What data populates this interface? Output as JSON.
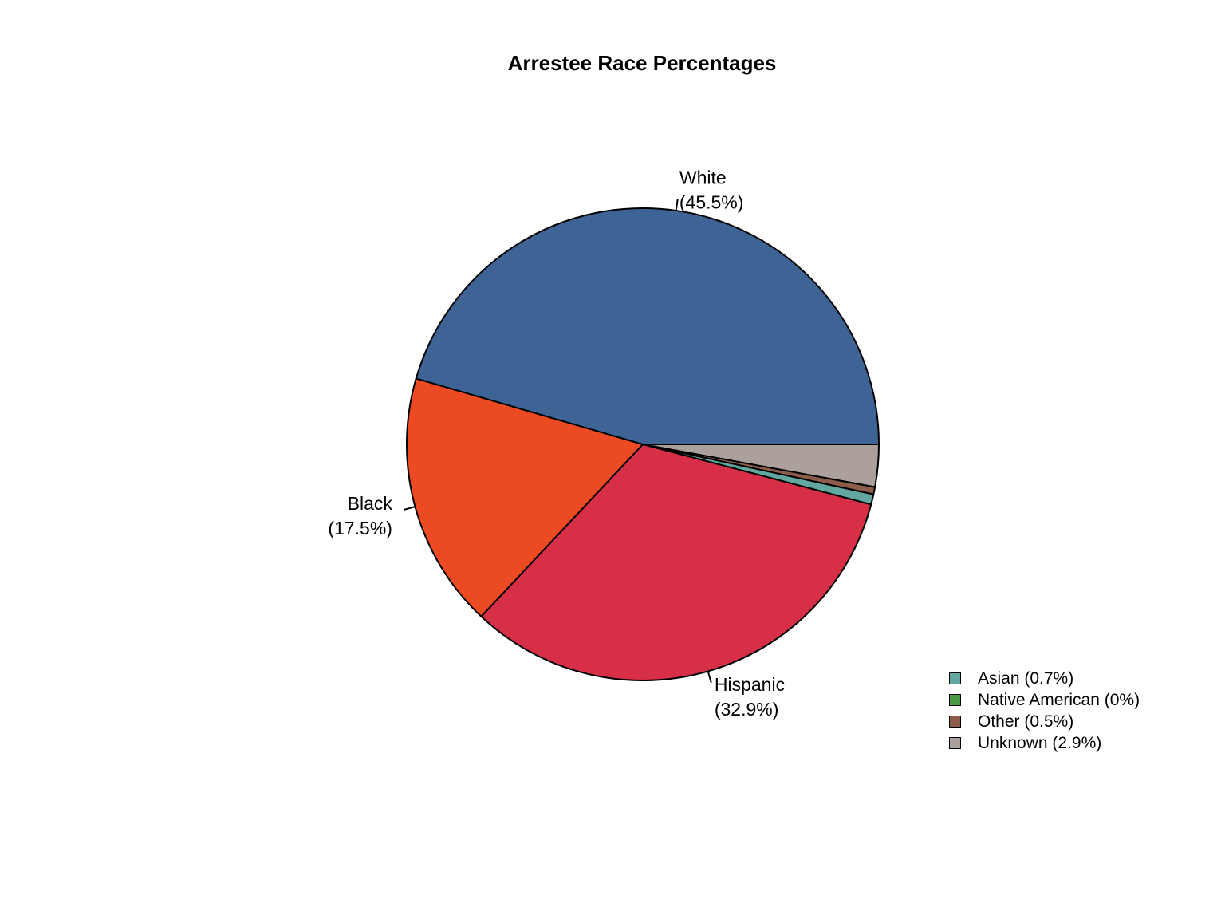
{
  "chart_data": {
    "type": "pie",
    "title": "Arrestee Race Percentages",
    "start_angle_deg": 0,
    "direction": "clockwise",
    "slices": [
      {
        "label": "Unknown",
        "pct_label": "(2.9%)",
        "value": 2.9,
        "color": "#ABA09B",
        "labeled_on_pie": false
      },
      {
        "label": "Other",
        "pct_label": "(0.5%)",
        "value": 0.5,
        "color": "#8C5E4A",
        "labeled_on_pie": false
      },
      {
        "label": "Native American",
        "pct_label": "(0%)",
        "value": 0.0,
        "color": "#4A9A45",
        "labeled_on_pie": false
      },
      {
        "label": "Asian",
        "pct_label": "(0.7%)",
        "value": 0.7,
        "color": "#63A8A0",
        "labeled_on_pie": false
      },
      {
        "label": "Hispanic",
        "pct_label": "(32.9%)",
        "value": 32.9,
        "color": "#D72F47",
        "labeled_on_pie": true
      },
      {
        "label": "Black",
        "pct_label": "(17.5%)",
        "value": 17.5,
        "color": "#EC4A23",
        "labeled_on_pie": true
      },
      {
        "label": "White",
        "pct_label": "(45.5%)",
        "value": 45.5,
        "color": "#3E6496",
        "labeled_on_pie": true
      }
    ],
    "legend": {
      "placement": "bottom-right",
      "items": [
        {
          "text": "Asian (0.7%)",
          "color": "#63A8A0"
        },
        {
          "text": "Native American (0%)",
          "color": "#4A9A45"
        },
        {
          "text": "Other (0.5%)",
          "color": "#8C5E4A"
        },
        {
          "text": "Unknown (2.9%)",
          "color": "#ABA09B"
        }
      ]
    }
  }
}
